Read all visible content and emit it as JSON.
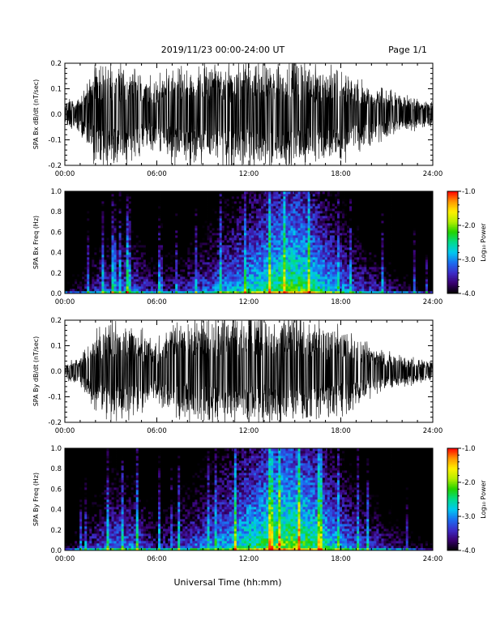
{
  "header": {
    "title": "2019/11/23  00:00-24:00 UT",
    "page": "Page 1/1"
  },
  "colors": {
    "trace": "#000000",
    "colormap": [
      "#000000",
      "#3a0070",
      "#3c2cc8",
      "#1a6ef0",
      "#00c8f0",
      "#00dc8c",
      "#22d200",
      "#b4ee00",
      "#fff000",
      "#ff9600",
      "#ff0000"
    ]
  },
  "chart_data": [
    {
      "type": "line",
      "ylabel": "SPA Bx dB/dt (nT/sec)",
      "x_ticks": [
        "00:00",
        "06:00",
        "12:00",
        "18:00",
        "24:00"
      ],
      "y_ticks": [
        "-0.2",
        "-0.1",
        "0.0",
        "0.1",
        "0.2"
      ],
      "xlim": [
        0,
        24
      ],
      "ylim": [
        -0.2,
        0.2
      ],
      "amplitude_envelope": {
        "hours": [
          0,
          1,
          2,
          3,
          4,
          5,
          6,
          7,
          8,
          9,
          10,
          11,
          12,
          13,
          14,
          15,
          16,
          17,
          18,
          19,
          20,
          21,
          22,
          23,
          24
        ],
        "amplitude": [
          0.05,
          0.07,
          0.2,
          0.2,
          0.2,
          0.16,
          0.14,
          0.2,
          0.2,
          0.2,
          0.2,
          0.22,
          0.22,
          0.22,
          0.22,
          0.22,
          0.22,
          0.2,
          0.2,
          0.15,
          0.12,
          0.1,
          0.08,
          0.06,
          0.05
        ]
      }
    },
    {
      "type": "heatmap",
      "ylabel": "SPA Bx Freq (Hz)",
      "x_ticks": [
        "00:00",
        "06:00",
        "12:00",
        "18:00",
        "24:00"
      ],
      "y_ticks": [
        "0.0",
        "0.2",
        "0.4",
        "0.6",
        "0.8",
        "1.0"
      ],
      "xlim": [
        0,
        24
      ],
      "ylim": [
        0,
        1
      ],
      "colorbar": {
        "label": "Log₁₀ Power",
        "range": [
          -4.0,
          -1.0
        ],
        "ticks": [
          "-1.0",
          "-2.0",
          "-3.0",
          "-4.0"
        ]
      },
      "power_profile": {
        "hours": [
          0,
          1,
          2,
          3,
          4,
          5,
          6,
          7,
          8,
          9,
          10,
          11,
          12,
          13,
          14,
          15,
          16,
          17,
          18,
          19,
          20,
          21,
          22,
          23,
          24
        ],
        "low_freq_power": [
          -3.8,
          -3.6,
          -3.2,
          -3.0,
          -2.9,
          -3.1,
          -3.4,
          -3.3,
          -3.2,
          -3.0,
          -2.8,
          -2.6,
          -2.4,
          -2.2,
          -2.0,
          -1.9,
          -2.1,
          -2.4,
          -2.7,
          -3.0,
          -3.2,
          -3.4,
          -3.6,
          -3.8,
          -3.9
        ]
      }
    },
    {
      "type": "line",
      "ylabel": "SPA By dB/dt (nT/sec)",
      "x_ticks": [
        "00:00",
        "06:00",
        "12:00",
        "18:00",
        "24:00"
      ],
      "y_ticks": [
        "-0.2",
        "-0.1",
        "0.0",
        "0.1",
        "0.2"
      ],
      "xlim": [
        0,
        24
      ],
      "ylim": [
        -0.2,
        0.2
      ],
      "amplitude_envelope": {
        "hours": [
          0,
          1,
          2,
          3,
          4,
          5,
          6,
          7,
          8,
          9,
          10,
          11,
          12,
          13,
          14,
          15,
          16,
          17,
          18,
          19,
          20,
          21,
          22,
          23,
          24
        ],
        "amplitude": [
          0.03,
          0.06,
          0.16,
          0.2,
          0.2,
          0.16,
          0.13,
          0.18,
          0.2,
          0.22,
          0.22,
          0.22,
          0.22,
          0.22,
          0.22,
          0.22,
          0.2,
          0.2,
          0.18,
          0.13,
          0.1,
          0.08,
          0.06,
          0.05,
          0.04
        ]
      }
    },
    {
      "type": "heatmap",
      "ylabel": "SPA By Freq (Hz)",
      "x_ticks": [
        "00:00",
        "06:00",
        "12:00",
        "18:00",
        "24:00"
      ],
      "y_ticks": [
        "0.0",
        "0.2",
        "0.4",
        "0.6",
        "0.8",
        "1.0"
      ],
      "xlim": [
        0,
        24
      ],
      "ylim": [
        0,
        1
      ],
      "colorbar": {
        "label": "Log₁₀ Power",
        "range": [
          -4.0,
          -1.0
        ],
        "ticks": [
          "-1.0",
          "-2.0",
          "-3.0",
          "-4.0"
        ]
      },
      "power_profile": {
        "hours": [
          0,
          1,
          2,
          3,
          4,
          5,
          6,
          7,
          8,
          9,
          10,
          11,
          12,
          13,
          14,
          15,
          16,
          17,
          18,
          19,
          20,
          21,
          22,
          23,
          24
        ],
        "low_freq_power": [
          -3.8,
          -3.5,
          -3.1,
          -2.8,
          -2.8,
          -3.0,
          -3.3,
          -3.2,
          -3.0,
          -2.8,
          -2.6,
          -2.4,
          -2.2,
          -2.0,
          -1.8,
          -1.8,
          -2.0,
          -2.3,
          -2.6,
          -2.9,
          -3.1,
          -3.3,
          -3.5,
          -3.7,
          -3.9
        ]
      }
    }
  ],
  "xlabel": "Universal Time (hh:mm)"
}
